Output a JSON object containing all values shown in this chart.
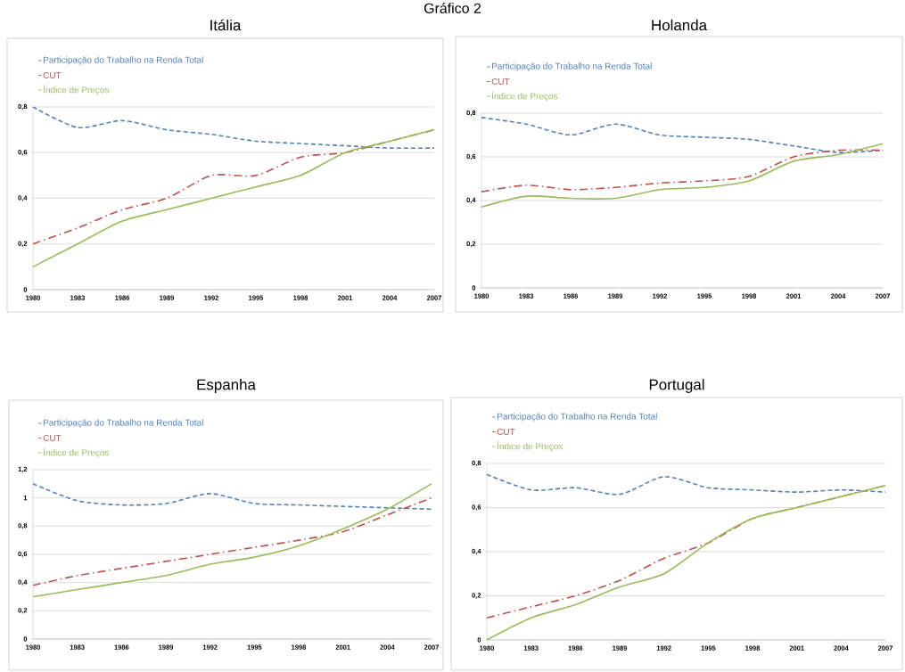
{
  "chart_data": [
    {
      "type": "other",
      "title": "Gráfico 2"
    },
    {
      "type": "line",
      "title": "Itália",
      "x": [
        1980,
        1983,
        1986,
        1989,
        1992,
        1995,
        1998,
        2001,
        2004,
        2007
      ],
      "xlim": [
        1980,
        2007
      ],
      "xticks": [
        1980,
        1983,
        1986,
        1989,
        1992,
        1995,
        1998,
        2001,
        2004,
        2007
      ],
      "ylim": [
        0,
        0.8
      ],
      "yticks": [
        0,
        {
          "value": 0.2,
          "label": "0,2"
        },
        {
          "value": 0.4,
          "label": "0,4"
        },
        {
          "value": 0.6,
          "label": "0,6"
        },
        {
          "value": 0.8,
          "label": "0,8"
        }
      ],
      "grid": "y",
      "legend": "top left",
      "series": [
        {
          "name": "Participação do Trabalho na Renda Total",
          "color": "#4f81bd",
          "line_style": "dashed",
          "values": [
            0.8,
            0.71,
            0.74,
            0.7,
            0.68,
            0.65,
            0.64,
            0.63,
            0.62,
            0.62
          ]
        },
        {
          "name": "CUT",
          "color": "#c0504d",
          "line_style": "dashdot",
          "values": [
            0.2,
            0.27,
            0.35,
            0.4,
            0.5,
            0.5,
            0.58,
            0.6,
            0.65,
            0.7
          ]
        },
        {
          "name": "Índice de Preços",
          "color": "#9bbb59",
          "line_style": "solid",
          "values": [
            0.1,
            0.2,
            0.3,
            0.35,
            0.4,
            0.45,
            0.5,
            0.6,
            0.65,
            0.7
          ]
        }
      ]
    },
    {
      "type": "line",
      "title": "Holanda",
      "x": [
        1980,
        1983,
        1986,
        1989,
        1992,
        1995,
        1998,
        2001,
        2004,
        2007
      ],
      "xlim": [
        1980,
        2007
      ],
      "xticks": [
        1980,
        1983,
        1986,
        1989,
        1992,
        1995,
        1998,
        2001,
        2004,
        2007
      ],
      "ylim": [
        0,
        0.8
      ],
      "yticks": [
        0,
        {
          "value": 0.2,
          "label": "0,2"
        },
        {
          "value": 0.4,
          "label": "0,4"
        },
        {
          "value": 0.6,
          "label": "0,6"
        },
        {
          "value": 0.8,
          "label": "0,8"
        }
      ],
      "grid": "y",
      "legend": "top left",
      "series": [
        {
          "name": "Participação do Trabalho na Renda Total",
          "color": "#4f81bd",
          "line_style": "dashed",
          "values": [
            0.78,
            0.75,
            0.7,
            0.75,
            0.7,
            0.69,
            0.68,
            0.65,
            0.62,
            0.63
          ]
        },
        {
          "name": "CUT",
          "color": "#c0504d",
          "line_style": "dashdot",
          "values": [
            0.44,
            0.47,
            0.45,
            0.46,
            0.48,
            0.49,
            0.51,
            0.6,
            0.63,
            0.63
          ]
        },
        {
          "name": "Índice de Preços",
          "color": "#9bbb59",
          "line_style": "solid",
          "values": [
            0.37,
            0.42,
            0.41,
            0.41,
            0.45,
            0.46,
            0.49,
            0.58,
            0.61,
            0.66
          ]
        }
      ]
    },
    {
      "type": "line",
      "title": "Espanha",
      "x": [
        1980,
        1983,
        1986,
        1989,
        1992,
        1995,
        1998,
        2001,
        2004,
        2007
      ],
      "xlim": [
        1980,
        2007
      ],
      "xticks": [
        1980,
        1983,
        1986,
        1989,
        1992,
        1995,
        1998,
        2001,
        2004,
        2007
      ],
      "ylim": [
        0,
        1.2
      ],
      "yticks": [
        0,
        {
          "value": 0.2,
          "label": "0,2"
        },
        {
          "value": 0.4,
          "label": "0,4"
        },
        {
          "value": 0.6,
          "label": "0,6"
        },
        {
          "value": 0.8,
          "label": "0,8"
        },
        1,
        {
          "value": 1.2,
          "label": "1,2"
        }
      ],
      "grid": "y",
      "legend": "top left",
      "series": [
        {
          "name": "Participação do Trabalho na Renda Total",
          "color": "#4f81bd",
          "line_style": "dashed",
          "values": [
            1.1,
            0.98,
            0.95,
            0.96,
            1.03,
            0.96,
            0.95,
            0.94,
            0.93,
            0.92
          ]
        },
        {
          "name": "CUT",
          "color": "#c0504d",
          "line_style": "dashdot",
          "values": [
            0.38,
            0.45,
            0.5,
            0.55,
            0.6,
            0.65,
            0.7,
            0.76,
            0.88,
            1.0
          ]
        },
        {
          "name": "Índice de Preços",
          "color": "#9bbb59",
          "line_style": "solid",
          "values": [
            0.3,
            0.35,
            0.4,
            0.45,
            0.53,
            0.58,
            0.66,
            0.78,
            0.92,
            1.1
          ]
        }
      ]
    },
    {
      "type": "line",
      "title": "Portugal",
      "x": [
        1980,
        1983,
        1986,
        1989,
        1992,
        1995,
        1998,
        2001,
        2004,
        2007
      ],
      "xlim": [
        1980,
        2007
      ],
      "xticks": [
        1980,
        1983,
        1986,
        1989,
        1992,
        1995,
        1998,
        2001,
        2004,
        2007
      ],
      "ylim": [
        0,
        0.8
      ],
      "yticks": [
        0,
        {
          "value": 0.2,
          "label": "0,2"
        },
        {
          "value": 0.4,
          "label": "0,4"
        },
        {
          "value": 0.6,
          "label": "0,6"
        },
        {
          "value": 0.8,
          "label": "0,8"
        }
      ],
      "grid": "y",
      "legend": "top left",
      "series": [
        {
          "name": "Participação do Trabalho na Renda Total",
          "color": "#4f81bd",
          "line_style": "dashed",
          "values": [
            0.75,
            0.68,
            0.69,
            0.66,
            0.74,
            0.69,
            0.68,
            0.67,
            0.68,
            0.67
          ]
        },
        {
          "name": "CUT",
          "color": "#c0504d",
          "line_style": "dashdot",
          "values": [
            0.1,
            0.15,
            0.2,
            0.27,
            0.37,
            0.44,
            0.55,
            0.6,
            0.65,
            0.7
          ]
        },
        {
          "name": "Índice de Preços",
          "color": "#9bbb59",
          "line_style": "solid",
          "values": [
            0.0,
            0.1,
            0.16,
            0.24,
            0.3,
            0.44,
            0.55,
            0.6,
            0.65,
            0.7
          ]
        }
      ]
    }
  ]
}
